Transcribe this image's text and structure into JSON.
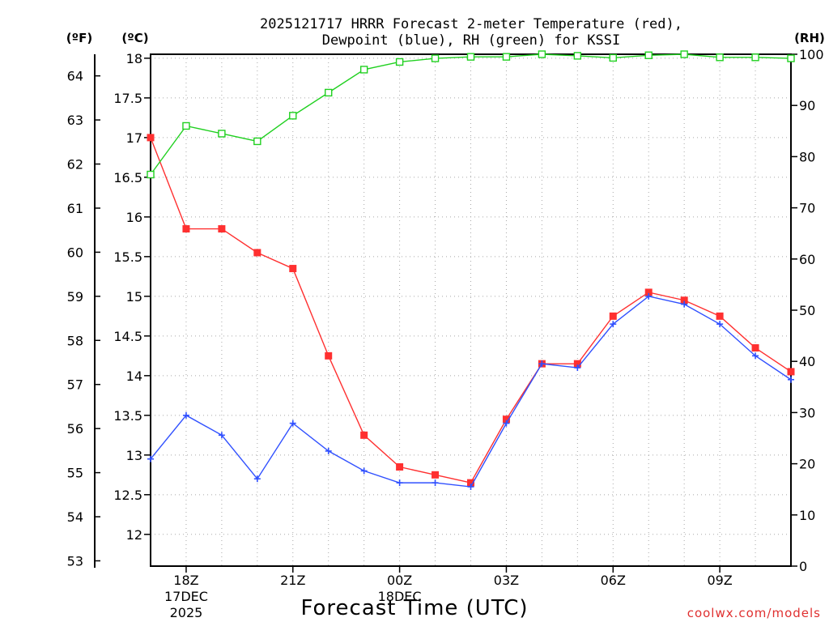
{
  "chart_data": {
    "type": "line",
    "title_line1": "2025121717 HRRR Forecast 2-meter Temperature (red),",
    "title_line2": "Dewpoint (blue), RH (green) for KSSI",
    "xlabel": "Forecast Time (UTC)",
    "left_axis_unit": "(ºF)",
    "celsius_axis_unit": "(ºC)",
    "right_axis_unit": "(RH)",
    "watermark": "coolwx.com/models",
    "x_ticks": [
      {
        "hour": 18,
        "label": "18Z",
        "sub1": "17DEC",
        "sub2": "2025"
      },
      {
        "hour": 21,
        "label": "21Z",
        "sub1": "",
        "sub2": ""
      },
      {
        "hour": 24,
        "label": "00Z",
        "sub1": "18DEC",
        "sub2": ""
      },
      {
        "hour": 27,
        "label": "03Z",
        "sub1": "",
        "sub2": ""
      },
      {
        "hour": 30,
        "label": "06Z",
        "sub1": "",
        "sub2": ""
      },
      {
        "hour": 33,
        "label": "09Z",
        "sub1": "",
        "sub2": ""
      }
    ],
    "x_hours": [
      17,
      18,
      19,
      20,
      21,
      22,
      23,
      24,
      25,
      26,
      27,
      28,
      29,
      30,
      31,
      32,
      33,
      34,
      35
    ],
    "xlim": [
      17,
      35
    ],
    "celsius_ylim": [
      11.6,
      18.05
    ],
    "celsius_ticks": [
      "12",
      "12.5",
      "13",
      "13.5",
      "14",
      "14.5",
      "15",
      "15.5",
      "16",
      "16.5",
      "17",
      "17.5",
      "18"
    ],
    "fahrenheit_ticks": [
      "53",
      "54",
      "55",
      "56",
      "57",
      "58",
      "59",
      "60",
      "61",
      "62",
      "63",
      "64"
    ],
    "rh_ylim": [
      0,
      100
    ],
    "rh_ticks": [
      "0",
      "10",
      "20",
      "30",
      "40",
      "50",
      "60",
      "70",
      "80",
      "90",
      "100"
    ],
    "grid": true,
    "series": [
      {
        "key": "temperature",
        "axis": "celsius",
        "color": "#ff3030",
        "marker": "filled-square",
        "values": [
          17.0,
          15.85,
          15.85,
          15.55,
          15.35,
          14.25,
          13.25,
          12.85,
          12.75,
          12.65,
          13.45,
          14.15,
          14.15,
          14.75,
          15.05,
          14.95,
          14.75,
          14.35,
          14.05
        ]
      },
      {
        "key": "dewpoint",
        "axis": "celsius",
        "color": "#3050ff",
        "marker": "plus",
        "values": [
          12.95,
          13.5,
          13.25,
          12.7,
          13.4,
          13.05,
          12.8,
          12.65,
          12.65,
          12.6,
          13.4,
          14.15,
          14.1,
          14.65,
          15.0,
          14.9,
          14.65,
          14.25,
          13.95
        ]
      },
      {
        "key": "rh",
        "axis": "rh",
        "color": "#20d020",
        "marker": "open-square",
        "values": [
          76.5,
          86.0,
          84.5,
          83.0,
          88.0,
          92.5,
          97.0,
          98.5,
          99.2,
          99.5,
          99.5,
          100.0,
          99.7,
          99.3,
          99.8,
          100.0,
          99.4,
          99.4,
          99.2
        ]
      }
    ]
  }
}
